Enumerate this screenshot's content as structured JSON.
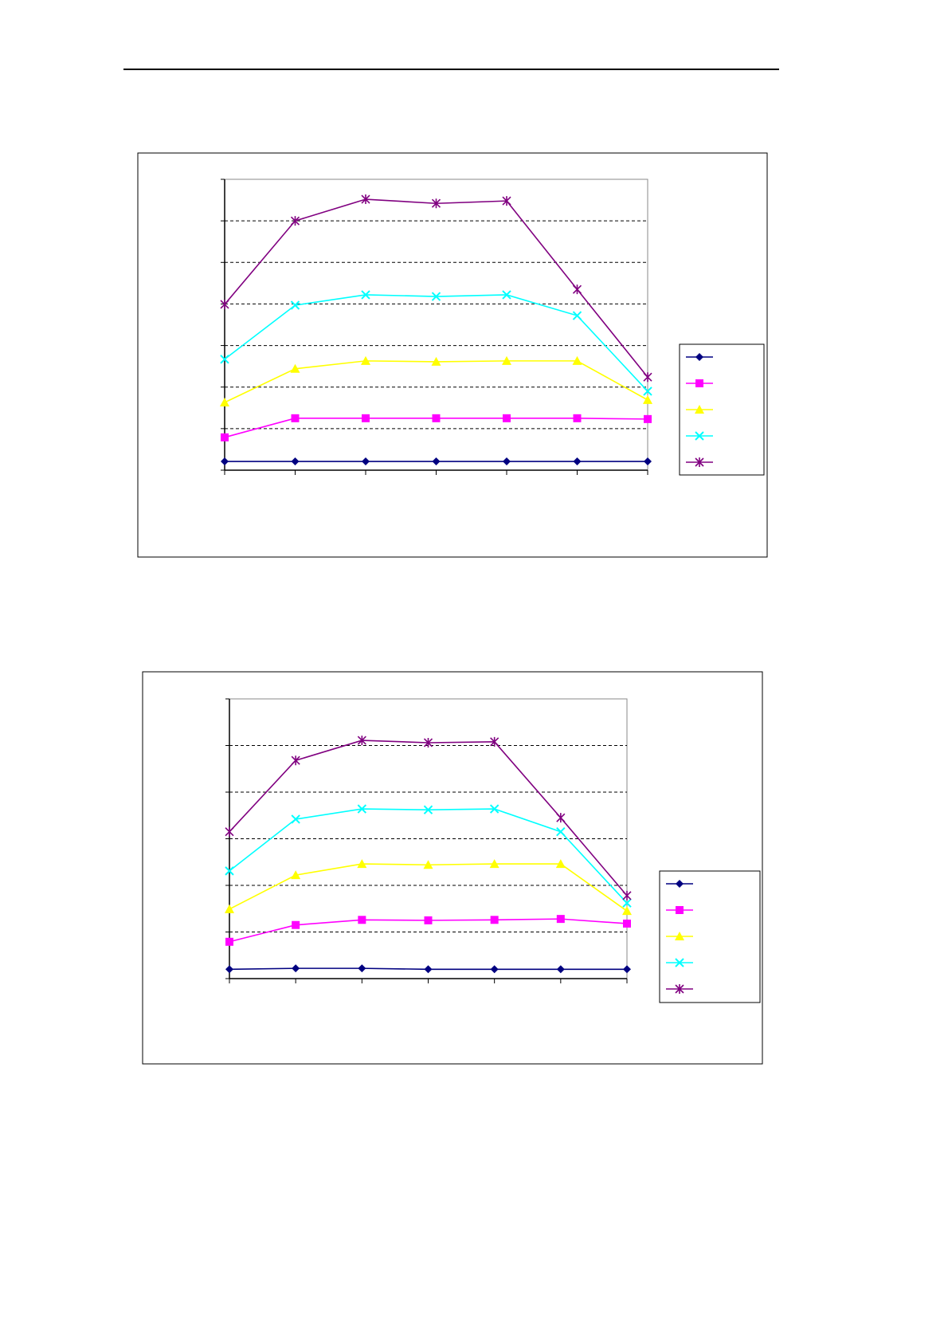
{
  "chart_data": [
    {
      "type": "line",
      "categories": [
        null,
        null,
        null,
        null,
        null,
        null,
        null
      ],
      "ylim": [
        0,
        7
      ],
      "yticks": [
        0,
        1,
        2,
        3,
        4,
        5,
        6,
        7
      ],
      "grid": true,
      "legend": "right",
      "series": [
        {
          "color": "#000080",
          "marker": "diamond",
          "values": [
            0.21,
            0.21,
            0.21,
            0.21,
            0.21,
            0.21,
            0.21
          ]
        },
        {
          "color": "#ff00ff",
          "marker": "square",
          "values": [
            0.79,
            1.25,
            1.25,
            1.25,
            1.25,
            1.25,
            1.23
          ]
        },
        {
          "color": "#ffff00",
          "marker": "triangle",
          "values": [
            1.63,
            2.44,
            2.63,
            2.61,
            2.63,
            2.63,
            1.69
          ]
        },
        {
          "color": "#00ffff",
          "marker": "x",
          "values": [
            2.67,
            3.97,
            4.22,
            4.18,
            4.22,
            3.72,
            1.9
          ]
        },
        {
          "color": "#800080",
          "marker": "star",
          "values": [
            3.99,
            6.0,
            6.52,
            6.42,
            6.48,
            4.35,
            2.24
          ]
        }
      ]
    },
    {
      "type": "line",
      "categories": [
        null,
        null,
        null,
        null,
        null,
        null,
        null
      ],
      "ylim": [
        0,
        6
      ],
      "yticks": [
        0,
        1,
        2,
        3,
        4,
        5,
        6
      ],
      "grid": true,
      "legend": "right",
      "series": [
        {
          "color": "#000080",
          "marker": "diamond",
          "values": [
            0.2,
            0.22,
            0.22,
            0.2,
            0.2,
            0.2,
            0.2
          ]
        },
        {
          "color": "#ff00ff",
          "marker": "square",
          "values": [
            0.79,
            1.15,
            1.26,
            1.25,
            1.26,
            1.28,
            1.18
          ]
        },
        {
          "color": "#ffff00",
          "marker": "triangle",
          "values": [
            1.49,
            2.22,
            2.46,
            2.44,
            2.46,
            2.46,
            1.45
          ]
        },
        {
          "color": "#00ffff",
          "marker": "x",
          "values": [
            2.31,
            3.42,
            3.64,
            3.62,
            3.64,
            3.15,
            1.62
          ]
        },
        {
          "color": "#800080",
          "marker": "star",
          "values": [
            3.15,
            4.68,
            5.11,
            5.06,
            5.08,
            3.45,
            1.78
          ]
        }
      ]
    }
  ]
}
